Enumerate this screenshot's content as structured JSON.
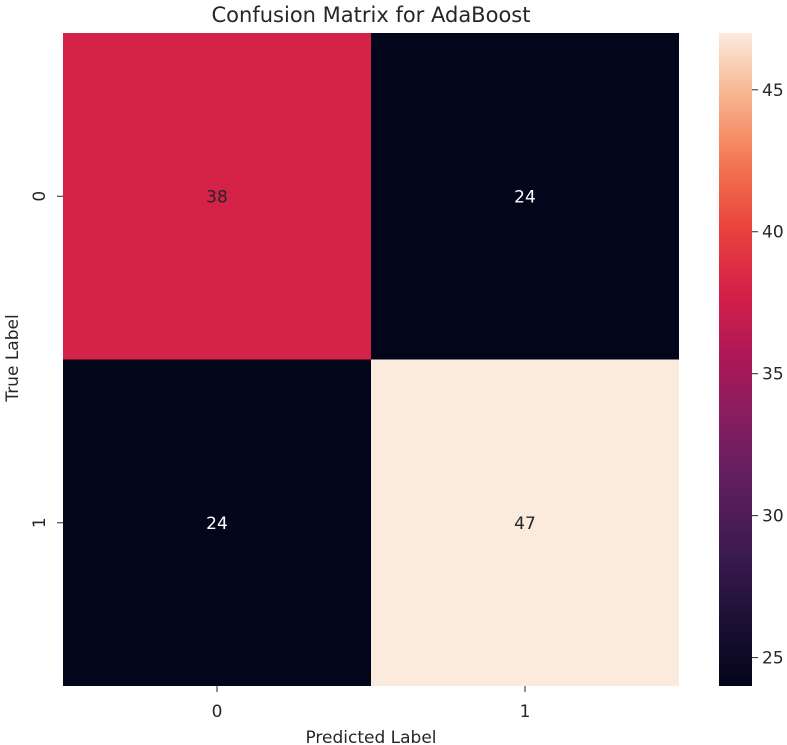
{
  "chart_data": {
    "type": "heatmap",
    "title": "Confusion Matrix for AdaBoost",
    "xlabel": "Predicted Label",
    "ylabel": "True Label",
    "x_categories": [
      "0",
      "1"
    ],
    "y_categories": [
      "0",
      "1"
    ],
    "values": [
      [
        38,
        24
      ],
      [
        24,
        47
      ]
    ],
    "colorbar": {
      "range": [
        24,
        47
      ],
      "ticks": [
        25,
        30,
        35,
        40,
        45
      ],
      "colormap": "rocket"
    },
    "grid": false,
    "annotations": true
  },
  "colors": {
    "low": "#03051a",
    "high": "#faebdd",
    "text_on_dark": "#ffffff",
    "text_on_light": "#262626"
  }
}
